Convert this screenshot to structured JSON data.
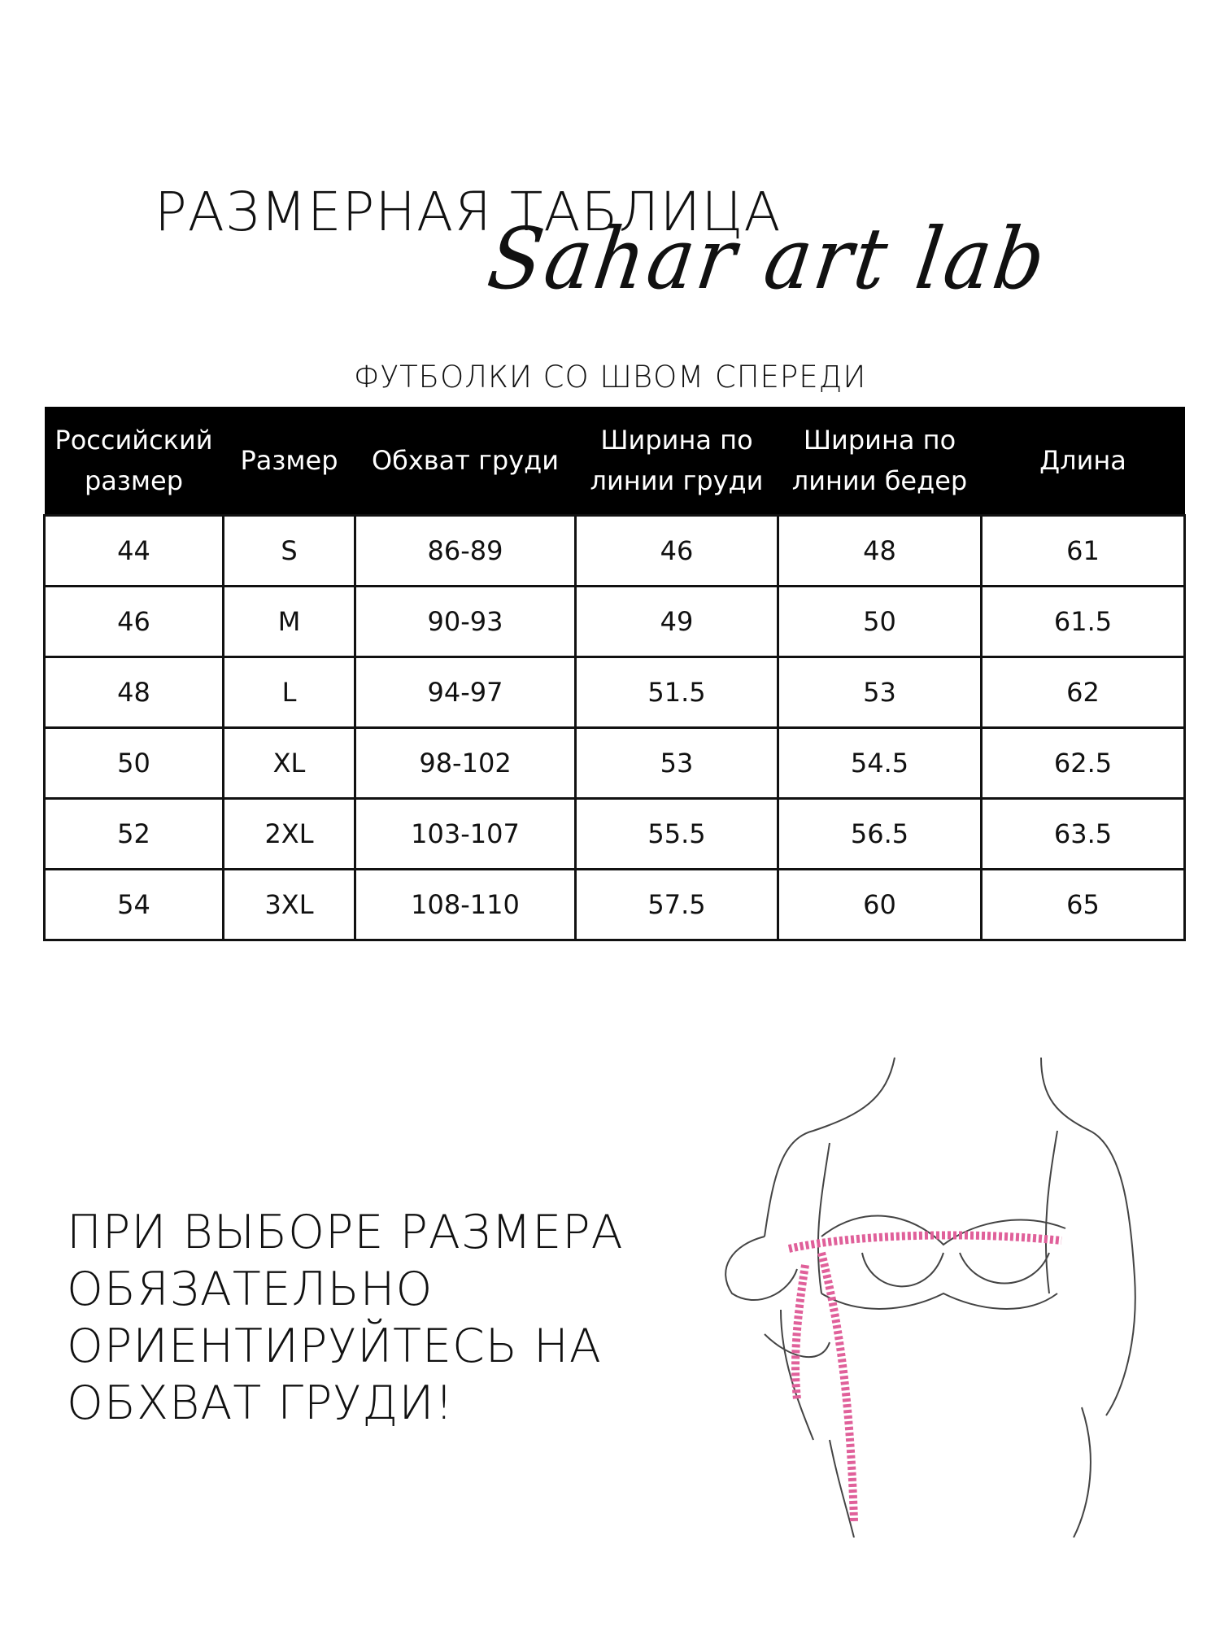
{
  "title": "РАЗМЕРНАЯ ТАБЛИЦА",
  "logo_text": "Sahar art lab",
  "subtitle": "ФУТБОЛКИ СО ШВОМ СПЕРЕДИ",
  "table": {
    "headers": [
      [
        "Российский",
        "размер"
      ],
      [
        "Размер"
      ],
      [
        "Обхват груди"
      ],
      [
        "Ширина по",
        "линии груди"
      ],
      [
        "Ширина по",
        "линии бедер"
      ],
      [
        "Длина"
      ]
    ],
    "rows": [
      [
        "44",
        "S",
        "86-89",
        "46",
        "48",
        "61"
      ],
      [
        "46",
        "M",
        "90-93",
        "49",
        "50",
        "61.5"
      ],
      [
        "48",
        "L",
        "94-97",
        "51.5",
        "53",
        "62"
      ],
      [
        "50",
        "XL",
        "98-102",
        "53",
        "54.5",
        "62.5"
      ],
      [
        "52",
        "2XL",
        "103-107",
        "55.5",
        "56.5",
        "63.5"
      ],
      [
        "54",
        "3XL",
        "108-110",
        "57.5",
        "60",
        "65"
      ]
    ]
  },
  "note": [
    "ПРИ ВЫБОРЕ РАЗМЕРА",
    "ОБЯЗАТЕЛЬНО",
    "ОРИЕНТИРУЙТЕСЬ НА",
    "ОБХВАТ ГРУДИ!"
  ],
  "colors": {
    "tape": "#e0609a",
    "header_bg": "#000000"
  },
  "illustration": "woman-measuring-bust-with-tape"
}
